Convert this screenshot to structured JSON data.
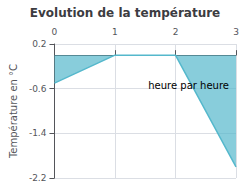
{
  "chart_data": {
    "type": "line",
    "title": "Evolution de la température",
    "ylabel": "Température en °C",
    "x": [
      0,
      1,
      2,
      3
    ],
    "values": [
      -0.5,
      0.0,
      0.0,
      -2.0
    ],
    "color": "#55b8cc",
    "xlim": [
      0,
      3
    ],
    "xticks": [
      0,
      1,
      2,
      3
    ],
    "ylim": [
      -2.2,
      0.2
    ],
    "yticks": [
      0.2,
      -0.6,
      -1.4,
      -2.2
    ],
    "grid": true,
    "annotations": [
      {
        "text": "heure par heure",
        "x": 1.55,
        "y": -0.55
      }
    ]
  }
}
